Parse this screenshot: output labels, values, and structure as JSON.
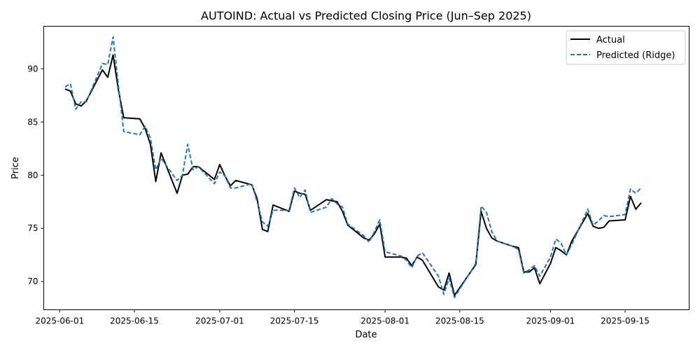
{
  "chart_data": {
    "type": "line",
    "title": "AUTOIND: Actual vs Predicted Closing Price (Jun–Sep 2025)",
    "xlabel": "Date",
    "ylabel": "Price",
    "xlim": [
      "2025-05-29",
      "2025-09-27"
    ],
    "ylim": [
      67.35,
      94.0
    ],
    "x_ticks": [
      "2025-06-01",
      "2025-06-15",
      "2025-07-01",
      "2025-07-15",
      "2025-08-01",
      "2025-08-15",
      "2025-09-01",
      "2025-09-15"
    ],
    "y_ticks": [
      70,
      75,
      80,
      85,
      90
    ],
    "grid": false,
    "legend_position": "top-right",
    "series": [
      {
        "name": "Actual",
        "color": "#000000",
        "style": "solid",
        "points": [
          [
            "2025-06-02",
            88.1
          ],
          [
            "2025-06-03",
            87.9
          ],
          [
            "2025-06-04",
            86.7
          ],
          [
            "2025-06-05",
            86.5
          ],
          [
            "2025-06-06",
            87.0
          ],
          [
            "2025-06-09",
            89.9
          ],
          [
            "2025-06-10",
            89.2
          ],
          [
            "2025-06-11",
            91.3
          ],
          [
            "2025-06-12",
            88.0
          ],
          [
            "2025-06-13",
            85.4
          ],
          [
            "2025-06-16",
            85.3
          ],
          [
            "2025-06-17",
            84.4
          ],
          [
            "2025-06-18",
            82.9
          ],
          [
            "2025-06-19",
            79.4
          ],
          [
            "2025-06-20",
            82.1
          ],
          [
            "2025-06-23",
            78.3
          ],
          [
            "2025-06-24",
            80.0
          ],
          [
            "2025-06-25",
            80.1
          ],
          [
            "2025-06-26",
            80.8
          ],
          [
            "2025-06-27",
            80.8
          ],
          [
            "2025-06-30",
            79.6
          ],
          [
            "2025-07-01",
            81.0
          ],
          [
            "2025-07-02",
            79.9
          ],
          [
            "2025-07-03",
            79.0
          ],
          [
            "2025-07-04",
            79.5
          ],
          [
            "2025-07-07",
            79.1
          ],
          [
            "2025-07-08",
            77.8
          ],
          [
            "2025-07-09",
            74.9
          ],
          [
            "2025-07-10",
            74.7
          ],
          [
            "2025-07-11",
            77.2
          ],
          [
            "2025-07-14",
            76.6
          ],
          [
            "2025-07-15",
            78.5
          ],
          [
            "2025-07-16",
            78.3
          ],
          [
            "2025-07-17",
            78.2
          ],
          [
            "2025-07-18",
            76.7
          ],
          [
            "2025-07-21",
            77.7
          ],
          [
            "2025-07-22",
            77.6
          ],
          [
            "2025-07-23",
            77.5
          ],
          [
            "2025-07-24",
            76.6
          ],
          [
            "2025-07-25",
            75.3
          ],
          [
            "2025-07-28",
            74.1
          ],
          [
            "2025-07-29",
            73.9
          ],
          [
            "2025-07-30",
            74.5
          ],
          [
            "2025-07-31",
            75.4
          ],
          [
            "2025-08-01",
            72.3
          ],
          [
            "2025-08-04",
            72.3
          ],
          [
            "2025-08-05",
            72.2
          ],
          [
            "2025-08-06",
            71.5
          ],
          [
            "2025-08-07",
            72.3
          ],
          [
            "2025-08-08",
            72.0
          ],
          [
            "2025-08-11",
            69.5
          ],
          [
            "2025-08-12",
            69.2
          ],
          [
            "2025-08-13",
            70.8
          ],
          [
            "2025-08-14",
            68.7
          ],
          [
            "2025-08-18",
            71.6
          ],
          [
            "2025-08-19",
            76.6
          ],
          [
            "2025-08-20",
            75.0
          ],
          [
            "2025-08-21",
            74.1
          ],
          [
            "2025-08-22",
            73.8
          ],
          [
            "2025-08-25",
            73.3
          ],
          [
            "2025-08-26",
            73.2
          ],
          [
            "2025-08-27",
            70.9
          ],
          [
            "2025-08-28",
            70.9
          ],
          [
            "2025-08-29",
            71.3
          ],
          [
            "2025-09-01",
            71.7
          ],
          [
            "2025-08-30",
            69.8
          ],
          [
            "2025-09-02",
            73.2
          ],
          [
            "2025-09-03",
            72.9
          ],
          [
            "2025-09-04",
            72.5
          ],
          [
            "2025-09-05",
            73.8
          ],
          [
            "2025-09-08",
            76.4
          ],
          [
            "2025-09-09",
            75.2
          ],
          [
            "2025-09-10",
            75.0
          ],
          [
            "2025-09-11",
            75.1
          ],
          [
            "2025-09-12",
            75.7
          ],
          [
            "2025-09-15",
            75.8
          ],
          [
            "2025-09-16",
            78.0
          ],
          [
            "2025-09-17",
            76.8
          ],
          [
            "2025-09-18",
            77.4
          ]
        ]
      },
      {
        "name": "Predicted (Ridge)",
        "color": "#1f77b4",
        "style": "dashed",
        "points": [
          [
            "2025-06-02",
            88.3
          ],
          [
            "2025-06-03",
            88.6
          ],
          [
            "2025-06-04",
            86.2
          ],
          [
            "2025-06-05",
            86.9
          ],
          [
            "2025-06-06",
            86.9
          ],
          [
            "2025-06-09",
            90.5
          ],
          [
            "2025-06-10",
            90.4
          ],
          [
            "2025-06-11",
            93.0
          ],
          [
            "2025-06-12",
            88.4
          ],
          [
            "2025-06-13",
            84.1
          ],
          [
            "2025-06-16",
            83.8
          ],
          [
            "2025-06-17",
            84.6
          ],
          [
            "2025-06-18",
            83.5
          ],
          [
            "2025-06-19",
            80.5
          ],
          [
            "2025-06-20",
            81.6
          ],
          [
            "2025-06-23",
            79.5
          ],
          [
            "2025-06-24",
            80.0
          ],
          [
            "2025-06-25",
            82.9
          ],
          [
            "2025-06-26",
            80.5
          ],
          [
            "2025-06-27",
            80.8
          ],
          [
            "2025-06-30",
            79.2
          ],
          [
            "2025-07-01",
            80.3
          ],
          [
            "2025-07-02",
            79.9
          ],
          [
            "2025-07-03",
            78.8
          ],
          [
            "2025-07-04",
            78.8
          ],
          [
            "2025-07-07",
            79.2
          ],
          [
            "2025-07-08",
            77.5
          ],
          [
            "2025-07-09",
            75.6
          ],
          [
            "2025-07-10",
            75.2
          ],
          [
            "2025-07-11",
            76.7
          ],
          [
            "2025-07-14",
            76.7
          ],
          [
            "2025-07-15",
            78.8
          ],
          [
            "2025-07-16",
            77.9
          ],
          [
            "2025-07-17",
            78.6
          ],
          [
            "2025-07-18",
            76.5
          ],
          [
            "2025-07-21",
            77.0
          ],
          [
            "2025-07-22",
            77.8
          ],
          [
            "2025-07-23",
            77.3
          ],
          [
            "2025-07-24",
            77.0
          ],
          [
            "2025-07-25",
            75.4
          ],
          [
            "2025-07-28",
            74.3
          ],
          [
            "2025-07-29",
            73.7
          ],
          [
            "2025-07-30",
            74.7
          ],
          [
            "2025-07-31",
            75.8
          ],
          [
            "2025-08-01",
            72.8
          ],
          [
            "2025-08-04",
            72.4
          ],
          [
            "2025-08-05",
            72.0
          ],
          [
            "2025-08-06",
            71.3
          ],
          [
            "2025-08-07",
            72.4
          ],
          [
            "2025-08-08",
            72.7
          ],
          [
            "2025-08-11",
            70.5
          ],
          [
            "2025-08-12",
            68.8
          ],
          [
            "2025-08-13",
            70.3
          ],
          [
            "2025-08-14",
            68.5
          ],
          [
            "2025-08-18",
            71.7
          ],
          [
            "2025-08-19",
            77.1
          ],
          [
            "2025-08-20",
            76.5
          ],
          [
            "2025-08-21",
            74.7
          ],
          [
            "2025-08-22",
            73.8
          ],
          [
            "2025-08-25",
            73.3
          ],
          [
            "2025-08-26",
            73.0
          ],
          [
            "2025-08-27",
            70.8
          ],
          [
            "2025-08-28",
            71.1
          ],
          [
            "2025-08-29",
            71.5
          ],
          [
            "2025-08-30",
            70.5
          ],
          [
            "2025-09-01",
            72.3
          ],
          [
            "2025-09-02",
            74.0
          ],
          [
            "2025-09-03",
            73.6
          ],
          [
            "2025-09-04",
            72.5
          ],
          [
            "2025-09-05",
            73.5
          ],
          [
            "2025-09-08",
            76.8
          ],
          [
            "2025-09-09",
            75.3
          ],
          [
            "2025-09-10",
            75.7
          ],
          [
            "2025-09-11",
            76.2
          ],
          [
            "2025-09-12",
            76.1
          ],
          [
            "2025-09-15",
            76.3
          ],
          [
            "2025-09-16",
            78.7
          ],
          [
            "2025-09-17",
            78.3
          ],
          [
            "2025-09-18",
            78.8
          ]
        ]
      }
    ]
  }
}
